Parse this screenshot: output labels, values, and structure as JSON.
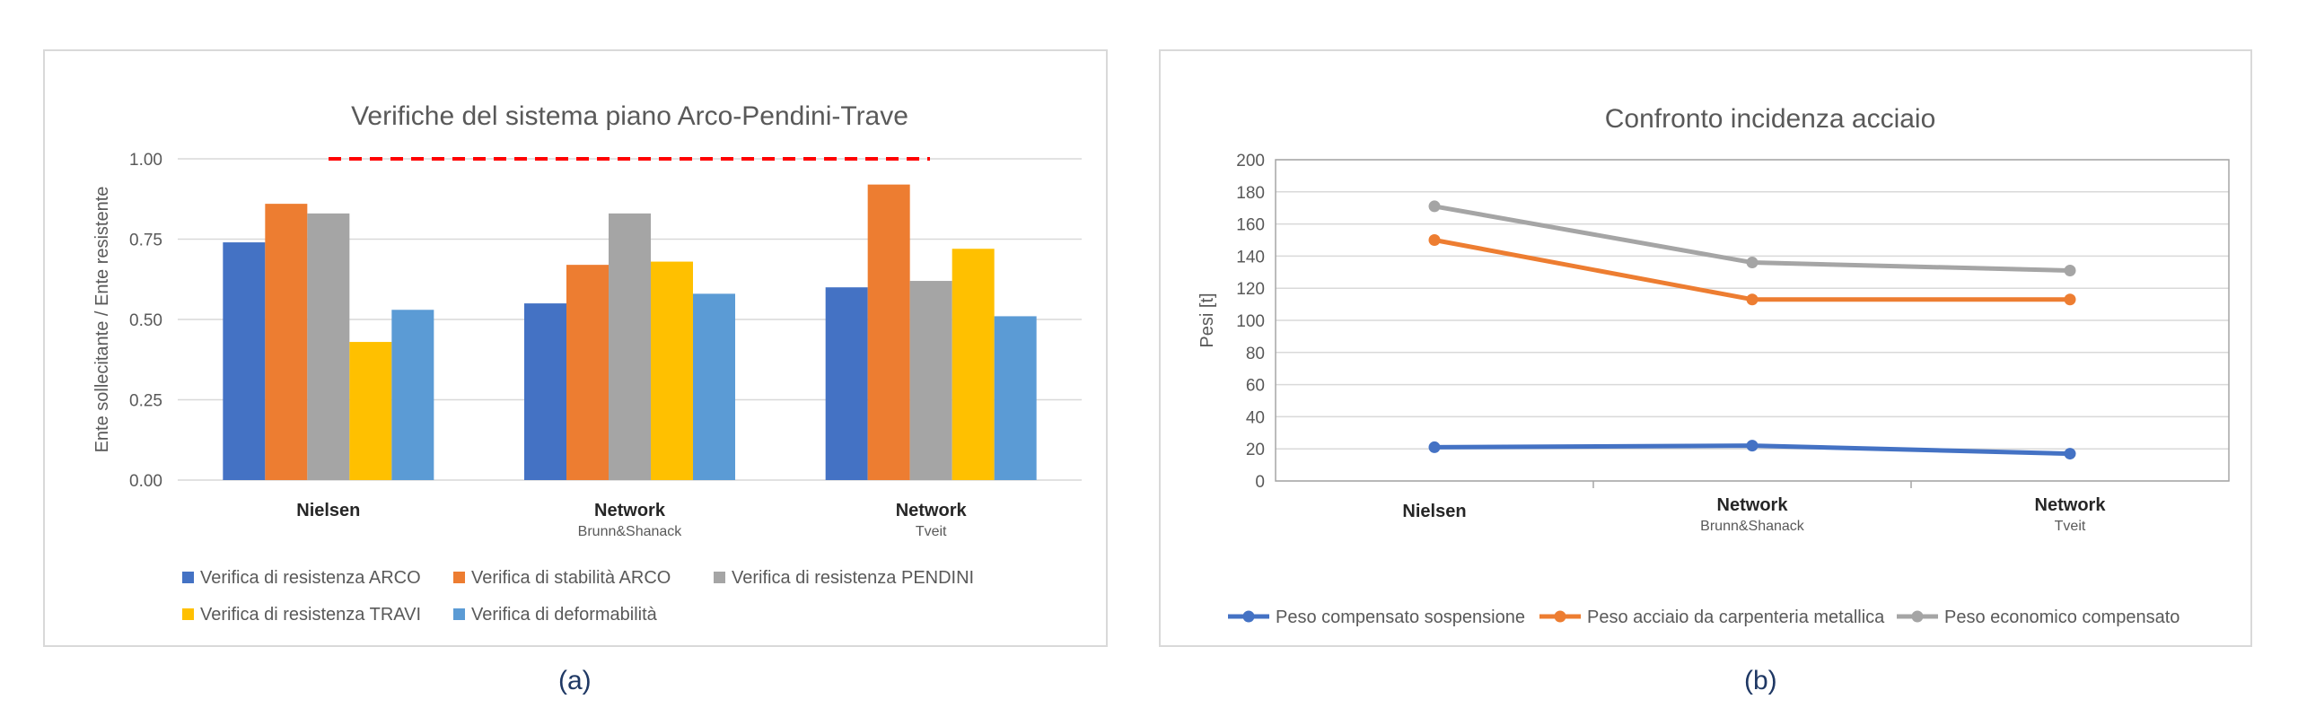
{
  "panels": [
    {
      "caption": "(a)",
      "chart_data": {
        "type": "bar",
        "title": "Verifiche del sistema piano Arco-Pendini-Trave",
        "ylabel": "Ente sollecitante / Ente resistente",
        "xlabel": "",
        "ylim": [
          0,
          1
        ],
        "yticks": [
          "0.00",
          "0.25",
          "0.50",
          "0.75",
          "1.00"
        ],
        "categories": [
          {
            "main": "Nielsen",
            "sub": ""
          },
          {
            "main": "Network",
            "sub": "Brunn&Shanack"
          },
          {
            "main": "Network",
            "sub": "Tveit"
          }
        ],
        "series": [
          {
            "name": "Verifica di resistenza ARCO",
            "color": "#4472c4",
            "values": [
              0.74,
              0.55,
              0.6
            ]
          },
          {
            "name": "Verifica di stabilità ARCO",
            "color": "#ed7d31",
            "values": [
              0.86,
              0.67,
              0.92
            ]
          },
          {
            "name": "Verifica di resistenza PENDINI",
            "color": "#a5a5a5",
            "values": [
              0.83,
              0.83,
              0.62
            ]
          },
          {
            "name": "Verifica di resistenza TRAVI",
            "color": "#ffc000",
            "values": [
              0.43,
              0.68,
              0.72
            ]
          },
          {
            "name": "Verifica di deformabilità",
            "color": "#5b9bd5",
            "values": [
              0.53,
              0.58,
              0.51
            ]
          }
        ],
        "reference_line": {
          "value": 1.0,
          "color": "#ff0000",
          "style": "dashed"
        },
        "grid": true,
        "legend_position": "bottom"
      }
    },
    {
      "caption": "(b)",
      "chart_data": {
        "type": "line",
        "title": "Confronto incidenza acciaio",
        "ylabel": "Pesi [t]",
        "xlabel": "",
        "ylim": [
          0,
          200
        ],
        "yticks": [
          "0",
          "20",
          "40",
          "60",
          "80",
          "100",
          "120",
          "140",
          "160",
          "180",
          "200"
        ],
        "categories": [
          {
            "main": "Nielsen",
            "sub": ""
          },
          {
            "main": "Network",
            "sub": "Brunn&Shanack"
          },
          {
            "main": "Network",
            "sub": "Tveit"
          }
        ],
        "series": [
          {
            "name": "Peso compensato sospensione",
            "color": "#4472c4",
            "values": [
              21,
              22,
              17
            ]
          },
          {
            "name": "Peso acciaio da carpenteria metallica",
            "color": "#ed7d31",
            "values": [
              150,
              113,
              113
            ]
          },
          {
            "name": "Peso economico compensato",
            "color": "#a5a5a5",
            "values": [
              171,
              136,
              131
            ]
          }
        ],
        "grid": true,
        "legend_position": "bottom"
      }
    }
  ]
}
